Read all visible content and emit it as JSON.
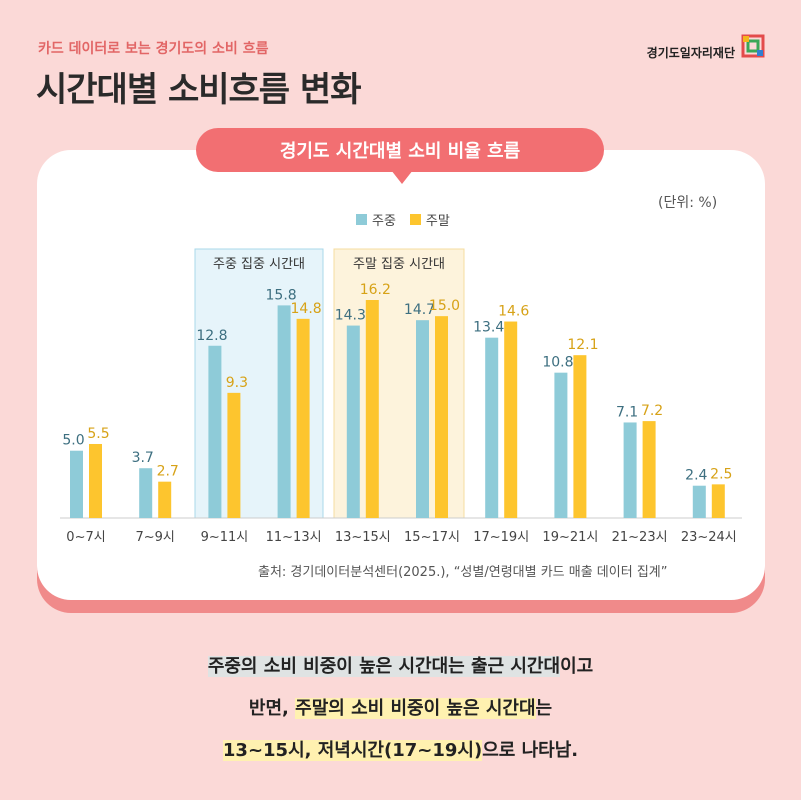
{
  "header": {
    "subtitle": "카드 데이터로 보는 경기도의 소비 흐름",
    "title": "시간대별 소비흐름 변화"
  },
  "logo": {
    "text": "경기도일자리재단"
  },
  "card": {
    "pill_title": "경기도 시간대별 소비 비율 흐름",
    "unit": "(단위: %)",
    "source": "출처: 경기데이터분석센터(2025.), “성별/연령대별 카드 매출 데이터 집계”"
  },
  "legend": {
    "weekday": "주중",
    "weekend": "주말"
  },
  "highlight_boxes": {
    "weekday": "주중 집중 시간대",
    "weekend": "주말 집중 시간대"
  },
  "colors": {
    "weekday": "#8ecbd8",
    "weekend": "#fdc52e",
    "weekday_label": "#3d6f80",
    "weekend_label": "#d7a217",
    "pill": "#f26f72"
  },
  "chart_data": {
    "type": "bar",
    "title": "경기도 시간대별 소비 비율 흐름",
    "categories": [
      "0~7시",
      "7~9시",
      "9~11시",
      "11~13시",
      "13~15시",
      "15~17시",
      "17~19시",
      "19~21시",
      "21~23시",
      "23~24시"
    ],
    "series": [
      {
        "name": "주중",
        "values": [
          5.0,
          3.7,
          12.8,
          15.8,
          14.3,
          14.7,
          13.4,
          10.8,
          7.1,
          2.4
        ]
      },
      {
        "name": "주말",
        "values": [
          5.5,
          2.7,
          9.3,
          14.8,
          16.2,
          15.0,
          14.6,
          12.1,
          7.2,
          2.5
        ]
      }
    ],
    "ylim": [
      0,
      16.2
    ],
    "value_labels": [
      [
        "5.0",
        "3.7",
        "12.8",
        "15.8",
        "14.3",
        "14.7",
        "13.4",
        "10.8",
        "7.1",
        "2.4"
      ],
      [
        "5.5",
        "2.7",
        "9.3",
        "14.8",
        "16.2",
        "15.0",
        "14.6",
        "12.1",
        "7.2",
        "2.5"
      ]
    ],
    "highlight_ranges": [
      {
        "label": "주중 집중 시간대",
        "from": "9~11시",
        "to": "11~13시"
      },
      {
        "label": "주말 집중 시간대",
        "from": "13~15시",
        "to": "15~17시"
      }
    ],
    "grid": false,
    "legend": "top-center"
  },
  "summary": {
    "l1a": "주중의 소비 비중이 높은 시간대는 출근 시간대",
    "l1b": "이고",
    "l2a": "반면, ",
    "l2b": "주말의 소비 비중이 높은 시간대",
    "l2c": "는",
    "l3a": "13~15시, 저녁시간(17~19시)",
    "l3b": "으로 나타남."
  }
}
